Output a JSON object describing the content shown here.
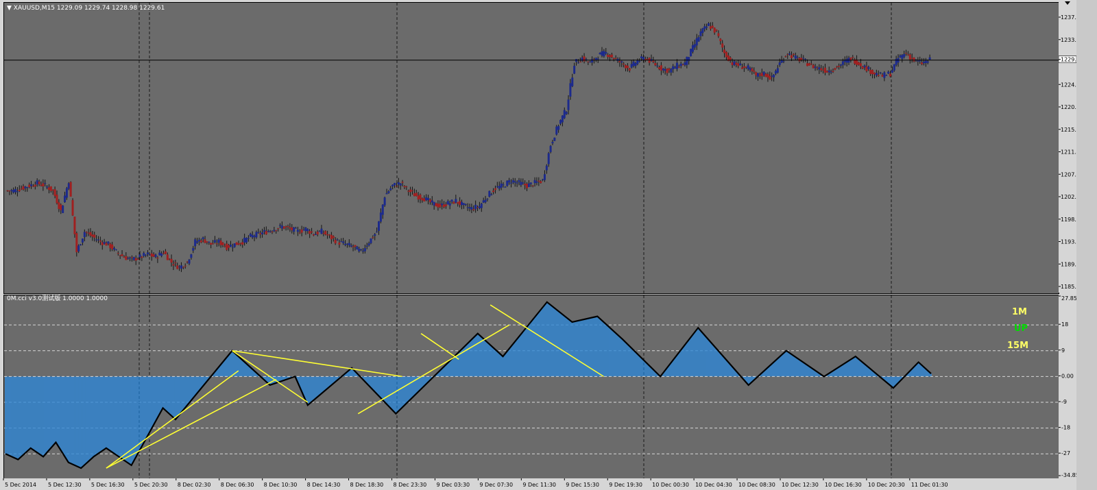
{
  "chart": {
    "symbol_header": "XAUUSD,M15  1229.09 1229.74 1228.98 1229.61",
    "current_price": "1229.61",
    "indicator_header": "0M.cci v3.0测试版 1.0000 1.0000"
  },
  "labels": {
    "tf1": "1M",
    "trend": "UP",
    "tf2": "15M"
  },
  "colors": {
    "background": "#6b6b6b",
    "bull_candle": "#1c2a8c",
    "bear_candle": "#a02020",
    "histogram": "#2f86d4",
    "zigzag": "#000000",
    "trendline": "#ffff33",
    "tf_label": "#ffff66",
    "trend_label": "#00dd00"
  },
  "price_axis": [
    "1237.90",
    "1233.50",
    "1229.61",
    "1224.70",
    "1220.30",
    "1215.90",
    "1211.50",
    "1207.10",
    "1202.70",
    "1198.30",
    "1193.90",
    "1189.50",
    "1185.10"
  ],
  "indicator_axis": [
    "27.85",
    "18",
    "9",
    "0.00",
    "-9",
    "-18",
    "-27",
    "-34.85"
  ],
  "time_axis": [
    "5 Dec 2014",
    "5 Dec 12:30",
    "5 Dec 16:30",
    "5 Dec 20:30",
    "8 Dec 02:30",
    "8 Dec 06:30",
    "8 Dec 10:30",
    "8 Dec 14:30",
    "8 Dec 18:30",
    "8 Dec 23:30",
    "9 Dec 03:30",
    "9 Dec 07:30",
    "9 Dec 11:30",
    "9 Dec 15:30",
    "9 Dec 19:30",
    "10 Dec 00:30",
    "10 Dec 04:30",
    "10 Dec 08:30",
    "10 Dec 12:30",
    "10 Dec 16:30",
    "10 Dec 20:30",
    "11 Dec 01:30"
  ],
  "chart_data": {
    "type": "candlestick",
    "price_ylim": [
      1185.1,
      1237.9
    ],
    "price_path": [
      1204,
      1204.5,
      1205,
      1205.5,
      1205,
      1204,
      1200,
      1206,
      1192,
      1196,
      1195,
      1194,
      1193.5,
      1192,
      1191,
      1190.5,
      1191,
      1191.5,
      1191,
      1192,
      1190,
      1189,
      1190,
      1194,
      1194.5,
      1193.5,
      1194,
      1193,
      1193.5,
      1194,
      1195,
      1195.5,
      1196,
      1196.5,
      1197,
      1196.5,
      1196,
      1196.5,
      1195.5,
      1196,
      1195,
      1194,
      1193.5,
      1193,
      1192,
      1194,
      1196,
      1203,
      1205,
      1205.5,
      1204,
      1203,
      1202.5,
      1201.5,
      1201,
      1201.5,
      1202,
      1201,
      1200.5,
      1201,
      1203,
      1204.5,
      1205,
      1206,
      1205.5,
      1205,
      1205.5,
      1206,
      1213,
      1217,
      1220,
      1229,
      1230,
      1229,
      1230.5,
      1231,
      1230,
      1229,
      1228,
      1229.5,
      1230,
      1229,
      1228,
      1227.5,
      1228.5,
      1229,
      1232,
      1235,
      1236.5,
      1235,
      1231,
      1229,
      1228.5,
      1228,
      1226.5,
      1227,
      1226,
      1229,
      1231,
      1230,
      1229.5,
      1228.5,
      1228,
      1227.5,
      1228,
      1229,
      1230,
      1229,
      1228,
      1227,
      1226.5,
      1227,
      1230,
      1231,
      1229.5,
      1229,
      1229.61
    ],
    "cci_ylim": [
      -34.85,
      27.85
    ],
    "cci_zigzag": [
      [
        0,
        -27
      ],
      [
        2,
        -29
      ],
      [
        4,
        -25
      ],
      [
        6,
        -28
      ],
      [
        8,
        -23
      ],
      [
        10,
        -30
      ],
      [
        12,
        -32
      ],
      [
        14,
        -28
      ],
      [
        16,
        -25
      ],
      [
        18,
        -28
      ],
      [
        20,
        -31
      ],
      [
        25,
        -11
      ],
      [
        27,
        -15
      ],
      [
        36,
        9
      ],
      [
        42,
        -3
      ],
      [
        46,
        0
      ],
      [
        48,
        -10
      ],
      [
        55,
        3
      ],
      [
        62,
        -13
      ],
      [
        75,
        15
      ],
      [
        79,
        7
      ],
      [
        86,
        26
      ],
      [
        90,
        19
      ],
      [
        94,
        21
      ],
      [
        98,
        13
      ],
      [
        104,
        0
      ],
      [
        110,
        17
      ],
      [
        118,
        -3
      ],
      [
        124,
        9
      ],
      [
        130,
        0
      ],
      [
        135,
        7
      ],
      [
        141,
        -4
      ],
      [
        145,
        5
      ],
      [
        147,
        1
      ]
    ],
    "trendlines": [
      [
        [
          16,
          -32
        ],
        [
          37,
          2
        ]
      ],
      [
        [
          16,
          -32
        ],
        [
          43,
          -1
        ]
      ],
      [
        [
          36,
          9
        ],
        [
          63,
          0
        ]
      ],
      [
        [
          36,
          9
        ],
        [
          48,
          -9
        ]
      ],
      [
        [
          56,
          -13
        ],
        [
          80,
          18
        ]
      ],
      [
        [
          66,
          15
        ],
        [
          72,
          6
        ]
      ],
      [
        [
          77,
          25
        ],
        [
          95,
          0
        ]
      ]
    ]
  }
}
